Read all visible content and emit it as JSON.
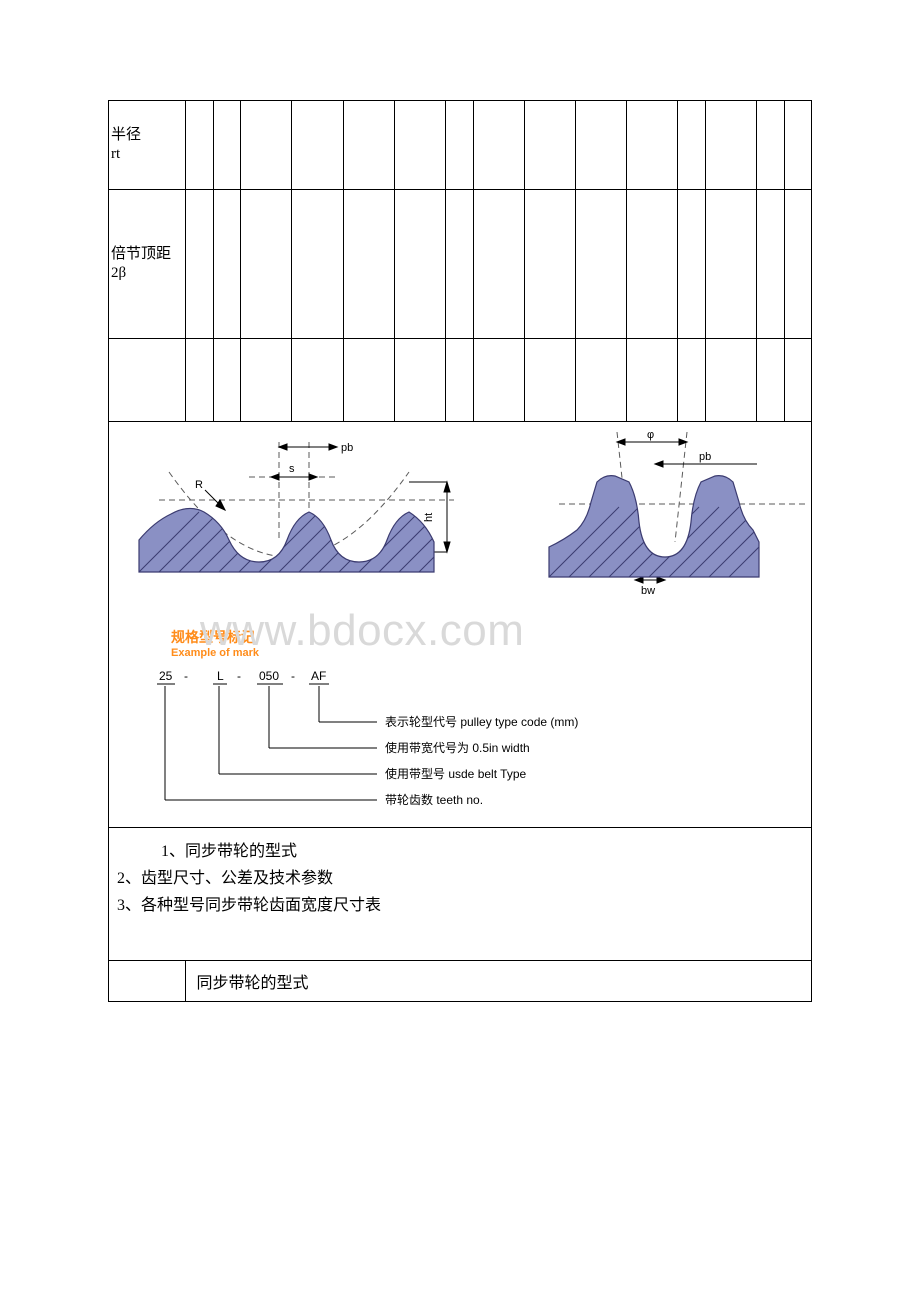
{
  "params": {
    "row1_label": "半径\nrt",
    "row2_label": "倍节顶距\n2β"
  },
  "figure": {
    "watermark": "www.bdocx.com",
    "profile_fill": "#8a90c4",
    "profile_stroke": "#3b3b70",
    "hatch_stroke": "#3b3b70",
    "dash_stroke": "#5a5a5a",
    "dim_stroke": "#000000",
    "labels": {
      "pb": "pb",
      "R": "R",
      "s": "s",
      "ht": "ht",
      "phi": "φ",
      "bw": "bw"
    },
    "mark": {
      "title_cn": "规格型号标记",
      "title_en": "Example of mark",
      "code": [
        "25",
        "-",
        "L",
        "-",
        "050",
        "-",
        "AF"
      ],
      "lines": [
        "表示轮型代号 pulley type code (mm)",
        "使用带宽代号为 0.5in width",
        "使用带型号 usde belt Type",
        "带轮齿数 teeth no."
      ]
    }
  },
  "list": {
    "items": [
      "1、同步带轮的型式",
      "2、齿型尺寸、公差及技术参数",
      "3、各种型号同步带轮齿面宽度尺寸表"
    ]
  },
  "section_title": "同步带轮的型式"
}
